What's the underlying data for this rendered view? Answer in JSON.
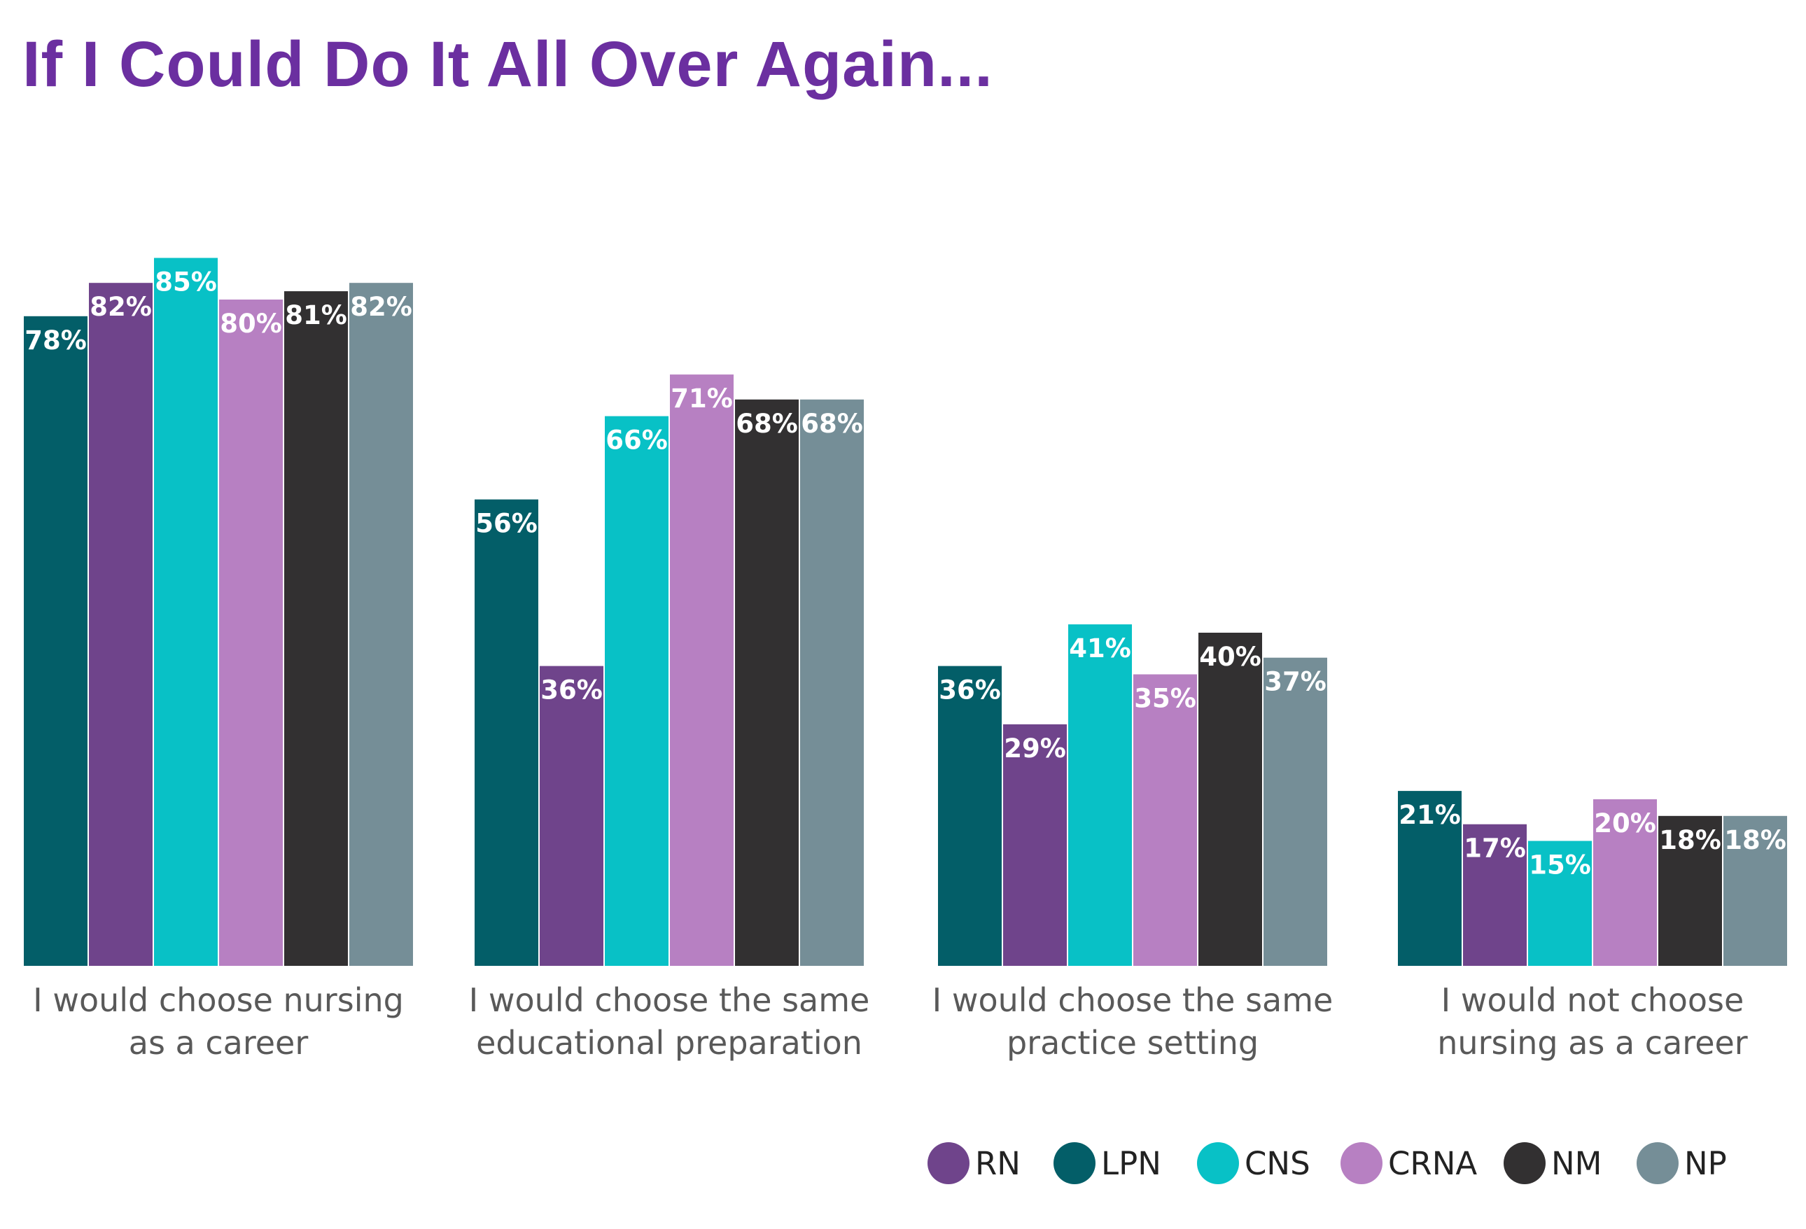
{
  "chart_data": {
    "type": "bar",
    "title": "If I Could Do It All Over Again...",
    "xlabel": "",
    "ylabel": "",
    "ylim": [
      0,
      100
    ],
    "grid": false,
    "value_suffix": "%",
    "legend_position": "bottom-right",
    "categories": [
      [
        "I would choose nursing",
        "as a career"
      ],
      [
        "I would choose the same",
        "educational preparation"
      ],
      [
        "I would choose the same",
        "practice setting"
      ],
      [
        "I would not choose",
        "nursing as a career"
      ]
    ],
    "series": [
      {
        "name": "LPN",
        "color": "#035e68",
        "values": [
          78,
          56,
          36,
          21
        ]
      },
      {
        "name": "RN",
        "color": "#6f448b",
        "values": [
          82,
          36,
          29,
          17
        ]
      },
      {
        "name": "CNS",
        "color": "#08c1c6",
        "values": [
          85,
          66,
          41,
          15
        ]
      },
      {
        "name": "CRNA",
        "color": "#b780c2",
        "values": [
          80,
          71,
          35,
          20
        ]
      },
      {
        "name": "NM",
        "color": "#323031",
        "values": [
          81,
          68,
          40,
          18
        ]
      },
      {
        "name": "NP",
        "color": "#758e97",
        "values": [
          82,
          68,
          37,
          18
        ]
      }
    ],
    "legend": [
      {
        "name": "RN",
        "color": "#6f448b"
      },
      {
        "name": "LPN",
        "color": "#035e68"
      },
      {
        "name": "CNS",
        "color": "#08c1c6"
      },
      {
        "name": "CRNA",
        "color": "#b780c2"
      },
      {
        "name": "NM",
        "color": "#323031"
      },
      {
        "name": "NP",
        "color": "#758e97"
      }
    ]
  }
}
